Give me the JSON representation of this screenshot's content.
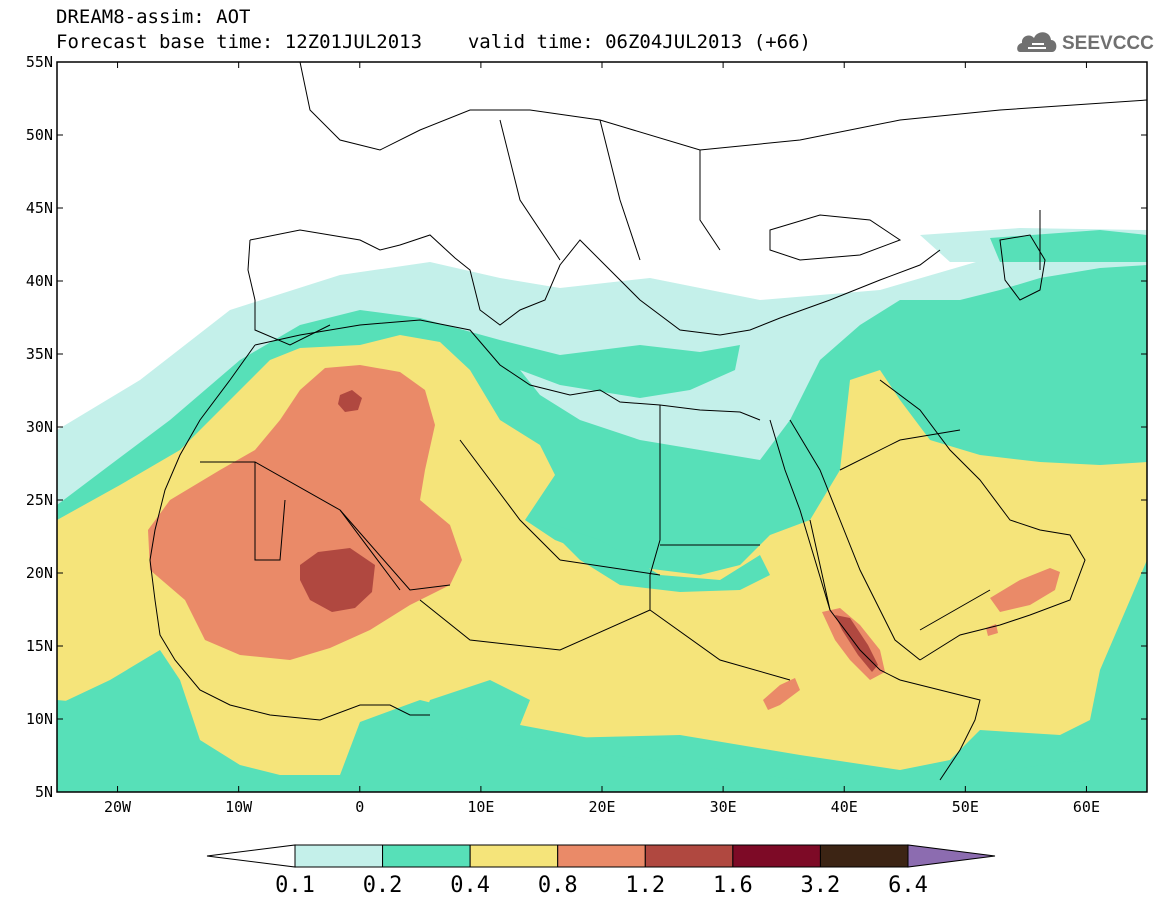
{
  "header": {
    "model_line": "DREAM8-assim: AOT",
    "base_time_label": "Forecast base time: 12Z01JUL2013",
    "valid_time_label": "valid time: 06Z04JUL2013 (+66)"
  },
  "logo": {
    "text": "SEEVCCC",
    "icon": "cloud-icon"
  },
  "map": {
    "lon_range": [
      -25,
      65
    ],
    "lat_range": [
      5,
      55
    ],
    "lat_ticks": [
      "5N",
      "10N",
      "15N",
      "20N",
      "25N",
      "30N",
      "35N",
      "40N",
      "45N",
      "50N",
      "55N"
    ],
    "lon_ticks": [
      "20W",
      "10W",
      "0",
      "10E",
      "20E",
      "30E",
      "40E",
      "50E",
      "60E"
    ]
  },
  "colorbar": {
    "labels": [
      "0.1",
      "0.2",
      "0.4",
      "0.8",
      "1.2",
      "1.6",
      "3.2",
      "6.4"
    ],
    "colors": [
      "#c4f0ea",
      "#57e0b8",
      "#f5e47a",
      "#ea8a68",
      "#b04840",
      "#7d0a26",
      "#3c2414"
    ],
    "under_color": "#ffffff",
    "over_color": "#8c6cb0"
  },
  "colors": {
    "aot_0_1": "#c4f0ea",
    "aot_0_2": "#57e0b8",
    "aot_0_4": "#f5e47a",
    "aot_0_8": "#ea8a68",
    "aot_1_2": "#b04840"
  }
}
